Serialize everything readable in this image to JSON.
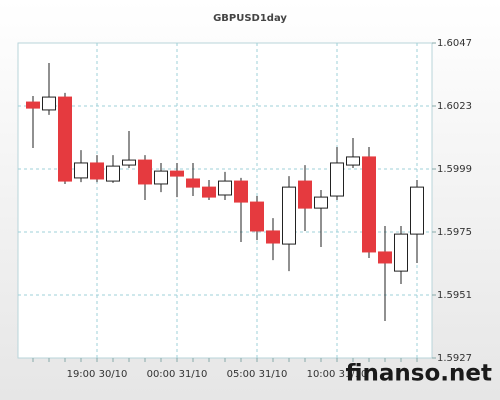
{
  "chart_data": {
    "type": "candlestick",
    "title": "GBPUSD1day",
    "categories": [
      null,
      null,
      null,
      null,
      "19:00 30/10",
      null,
      null,
      null,
      null,
      "00:00 31/10",
      null,
      null,
      null,
      null,
      "05:00 31/10",
      null,
      null,
      null,
      null,
      "10:00 31/10",
      null,
      null,
      null,
      null,
      null
    ],
    "open": [
      1.60245,
      1.60215,
      1.60264,
      1.59956,
      1.60013,
      1.59944,
      1.60005,
      1.60024,
      1.59933,
      1.59982,
      1.59952,
      1.59921,
      1.59891,
      1.59944,
      1.59864,
      1.59754,
      1.59704,
      1.59944,
      1.59841,
      1.59887,
      1.60005,
      1.60036,
      1.59674,
      1.59601,
      1.59742
    ],
    "high": [
      1.60268,
      1.60394,
      1.6028,
      1.60062,
      1.60043,
      1.60043,
      1.60135,
      1.60043,
      1.60013,
      1.60013,
      1.60013,
      1.59948,
      1.59979,
      1.59956,
      1.59887,
      1.59803,
      1.59963,
      1.60005,
      1.5991,
      1.60074,
      1.60108,
      1.60074,
      1.59773,
      1.59773,
      1.59948
    ],
    "low": [
      1.6007,
      1.60196,
      1.59933,
      1.5994,
      1.5994,
      1.59937,
      1.59994,
      1.59872,
      1.59902,
      1.59883,
      1.59887,
      1.59872,
      1.59872,
      1.59712,
      1.59719,
      1.59643,
      1.59601,
      1.59754,
      1.59693,
      1.59872,
      1.59994,
      1.59651,
      1.59411,
      1.59552,
      1.59632
    ],
    "close": [
      1.60222,
      1.60264,
      1.59944,
      1.60013,
      1.59952,
      1.60001,
      1.60024,
      1.59933,
      1.59982,
      1.59963,
      1.59921,
      1.59883,
      1.59944,
      1.59864,
      1.59754,
      1.59708,
      1.59921,
      1.59841,
      1.59883,
      1.60013,
      1.60036,
      1.59674,
      1.59632,
      1.59742,
      1.59921
    ],
    "up_color": "#ffffff",
    "down_color": "#e53a3f",
    "ylim": [
      1.5927,
      1.6047
    ],
    "yticks": [
      1.5927,
      1.5951,
      1.5975,
      1.5999,
      1.6023,
      1.6047
    ],
    "grid": true,
    "watermark": "finanso.net"
  }
}
